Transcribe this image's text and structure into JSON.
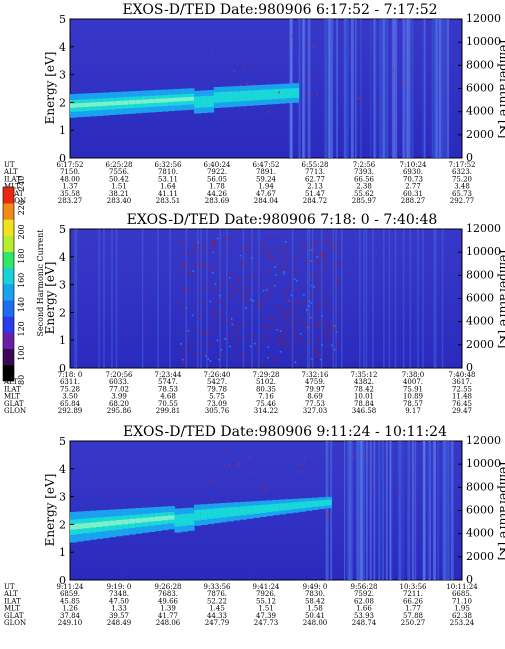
{
  "colorbar": {
    "label": "Second Harmonic Current",
    "ticks": [
      "80",
      "100",
      "120",
      "140",
      "160",
      "180",
      "200",
      "220",
      "240"
    ],
    "colors": [
      "#000000",
      "#3a0a55",
      "#6a1ea8",
      "#2c3aee",
      "#1e6cf0",
      "#1aa2ee",
      "#18d2d8",
      "#2ee86a",
      "#b6ee2e",
      "#f0e21e",
      "#f08a1a",
      "#e82a14"
    ]
  },
  "orbit_labels": [
    "UT",
    "ALT",
    "ILAT",
    "MLT",
    "GLAT",
    "GLON"
  ],
  "chart_data": [
    {
      "type": "heatmap",
      "title": "EXOS-D/TED   Date:980906  6:17:52 - 7:17:52",
      "ylabel": "Energy [eV]",
      "y2label": "Temperature [K]",
      "ylim": [
        0,
        5
      ],
      "y2lim": [
        0,
        12000
      ],
      "y_ticks": [
        "0",
        "1",
        "2",
        "3",
        "4",
        "5"
      ],
      "y2_ticks": [
        "0",
        "2000",
        "4000",
        "6000",
        "8000",
        "10000",
        "12000"
      ],
      "orbit": {
        "UT": [
          "6:17:52",
          "6:25:28",
          "6:32:56",
          "6:40:24",
          "6:47:52",
          "6:55:28",
          "7:2:56",
          "7:10:24",
          "7:17:52"
        ],
        "ALT": [
          "7150.",
          "7556.",
          "7810.",
          "7922.",
          "7891.",
          "7713.",
          "7393.",
          "6930.",
          "6323."
        ],
        "ILAT": [
          "48.00",
          "50.42",
          "53.11",
          "56.05",
          "59.24",
          "62.77",
          "66.56",
          "70.73",
          "75.20"
        ],
        "MLT": [
          "1.37",
          "1.51",
          "1.64",
          "1.78",
          "1.94",
          "2.13",
          "2.38",
          "2.77",
          "3.48"
        ],
        "GLAT": [
          "35.58",
          "38.21",
          "41.11",
          "44.26",
          "47.67",
          "51.47",
          "55.62",
          "60.31",
          "65.73"
        ],
        "GLON": [
          "283.27",
          "283.40",
          "283.51",
          "283.69",
          "284.04",
          "284.72",
          "285.97",
          "288.27",
          "292.77"
        ]
      },
      "band": {
        "start": [
          1.45,
          2.3
        ],
        "end": [
          2.0,
          2.7
        ],
        "dip_at": 0.33,
        "ends_at": 0.58
      }
    },
    {
      "type": "heatmap",
      "title": "EXOS-D/TED   Date:980906  7:18: 0 - 7:40:48",
      "ylabel": "Energy [eV]",
      "y2label": "Temperature [K]",
      "ylim": [
        0,
        5
      ],
      "y2lim": [
        0,
        12000
      ],
      "y_ticks": [
        "0",
        "1",
        "2",
        "3",
        "4",
        "5"
      ],
      "y2_ticks": [
        "0",
        "2000",
        "4000",
        "6000",
        "8000",
        "10000",
        "12000"
      ],
      "orbit": {
        "UT": [
          "7:18: 0",
          "7:20:56",
          "7:23:44",
          "7:26:40",
          "7:29:28",
          "7:32:16",
          "7:35:12",
          "7:38:0",
          "7:40:48"
        ],
        "ALT": [
          "6311.",
          "6033.",
          "5747.",
          "5427.",
          "5102.",
          "4759.",
          "4382.",
          "4007.",
          "3617."
        ],
        "ILAT": [
          "75.28",
          "77.02",
          "78.53",
          "79.78",
          "80.35",
          "79.97",
          "78.42",
          "75.91",
          "72.55"
        ],
        "MLT": [
          "3.50",
          "3.99",
          "4.68",
          "5.75",
          "7.16",
          "8.69",
          "10.01",
          "10.89",
          "11.48"
        ],
        "GLAT": [
          "65.84",
          "68.20",
          "70.55",
          "73.09",
          "75.46",
          "77.53",
          "78.84",
          "78.57",
          "76.45"
        ],
        "GLON": [
          "292.89",
          "295.86",
          "299.81",
          "305.76",
          "314.22",
          "327.03",
          "346.58",
          "9.17",
          "29.47"
        ]
      },
      "band": null
    },
    {
      "type": "heatmap",
      "title": "EXOS-D/TED   Date:980906  9:11:24 - 10:11:24",
      "ylabel": "Energy [eV]",
      "y2label": "Temperature [K]",
      "ylim": [
        0,
        5
      ],
      "y2lim": [
        0,
        12000
      ],
      "y_ticks": [
        "0",
        "1",
        "2",
        "3",
        "4",
        "5"
      ],
      "y2_ticks": [
        "0",
        "2000",
        "4000",
        "6000",
        "8000",
        "10000",
        "12000"
      ],
      "orbit": {
        "UT": [
          "9:11:24",
          "9:19: 0",
          "9:26:28",
          "9:33:56",
          "9:41:24",
          "9:49: 0",
          "9:56:28",
          "10:3:56",
          "10:11:24"
        ],
        "ALT": [
          "6859.",
          "7348.",
          "7683.",
          "7876.",
          "7926.",
          "7830.",
          "7592.",
          "7211.",
          "6685."
        ],
        "ILAT": [
          "45.85",
          "47.50",
          "49.66",
          "52.22",
          "55.12",
          "58.42",
          "62.08",
          "66.26",
          "71.10"
        ],
        "MLT": [
          "1.26",
          "1.33",
          "1.39",
          "1.45",
          "1.51",
          "1.58",
          "1.66",
          "1.77",
          "1.95"
        ],
        "GLAT": [
          "37.84",
          "39.57",
          "41.77",
          "44.33",
          "47.39",
          "50.41",
          "53.93",
          "57.88",
          "62.38"
        ],
        "GLON": [
          "249.10",
          "248.49",
          "248.06",
          "247.79",
          "247.73",
          "248.00",
          "248.74",
          "250.27",
          "253.24"
        ]
      },
      "band": {
        "start": [
          1.35,
          2.45
        ],
        "end": [
          2.6,
          3.0
        ],
        "dip_at": 0.28,
        "ends_at": 0.66
      }
    }
  ]
}
